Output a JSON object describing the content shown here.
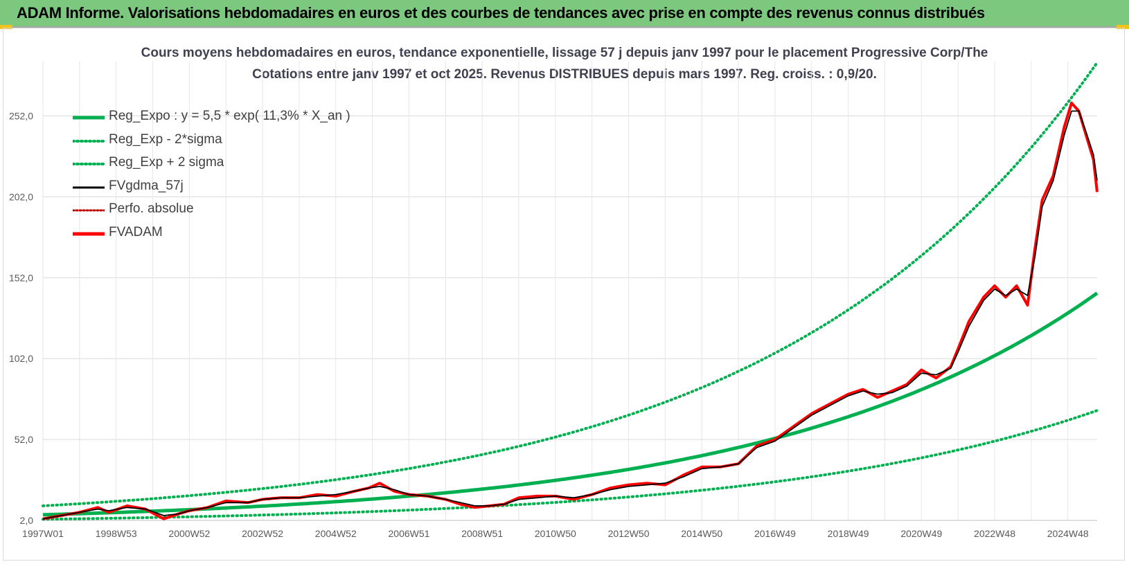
{
  "header": {
    "title": "ADAM Informe. Valorisations hebdomadaires en euros et des courbes de tendances avec prise en compte des revenus connus distribués"
  },
  "chart_data": {
    "type": "line",
    "title_line1": "Cours moyens hebdomadaires en euros, tendance exponentielle, lissage 57 j depuis janv 1997 pour le placement Progressive Corp/The",
    "title_line2": "Cotations entre janv 1997 et oct 2025. Revenus DISTRIBUES depuis mars 1997. Reg. croiss. : 0,9/20.",
    "x_ticks": [
      "1997W01",
      "1998W53",
      "2000W52",
      "2002W52",
      "2004W52",
      "2006W51",
      "2008W51",
      "2010W50",
      "2012W50",
      "2014W50",
      "2016W49",
      "2018W49",
      "2020W49",
      "2022W48",
      "2024W48"
    ],
    "x_range_years": [
      1997.0,
      2025.8
    ],
    "ylim": [
      2.0,
      286.0
    ],
    "y_ticks": [
      "2,0",
      "52,0",
      "102,0",
      "152,0",
      "202,0",
      "252,0"
    ],
    "y_tick_values": [
      2,
      52,
      102,
      152,
      202,
      252
    ],
    "legend": [
      {
        "label": "Reg_Expo : y = 5,5 * exp( 11,3% *  X_an )",
        "color": "#00b050",
        "style": "solid-thick"
      },
      {
        "label": "Reg_Exp - 2*sigma",
        "color": "#00b050",
        "style": "dotted"
      },
      {
        "label": "Reg_Exp + 2 sigma",
        "color": "#00b050",
        "style": "dotted"
      },
      {
        "label": "FVgdma_57j",
        "color": "#000000",
        "style": "solid"
      },
      {
        "label": "Perfo. absolue",
        "color": "#c00000",
        "style": "dotted"
      },
      {
        "label": "FVADAM",
        "color": "#ff0000",
        "style": "solid-thick"
      }
    ],
    "series": [
      {
        "name": "Reg_Expo",
        "color": "#00b050",
        "a": 5.5,
        "b": 0.113
      },
      {
        "name": "Reg_Exp - 2*sigma",
        "color": "#00b050",
        "a": 2.7,
        "b": 0.113
      },
      {
        "name": "Reg_Exp + 2 sigma",
        "color": "#00b050",
        "a": 11.0,
        "b": 0.113
      },
      {
        "name": "FVADAM",
        "color": "#ff0000",
        "x": [
          1997.0,
          1997.5,
          1998.0,
          1998.5,
          1998.8,
          1999.3,
          1999.8,
          2000.3,
          2000.7,
          2001.0,
          2001.5,
          2002.0,
          2002.6,
          2003.0,
          2003.5,
          2004.0,
          2004.5,
          2005.0,
          2005.5,
          2005.9,
          2006.2,
          2006.6,
          2007.0,
          2007.5,
          2008.0,
          2008.4,
          2008.8,
          2009.2,
          2009.6,
          2010.0,
          2010.5,
          2011.0,
          2011.5,
          2012.0,
          2012.5,
          2013.0,
          2013.5,
          2014.0,
          2014.5,
          2015.0,
          2015.5,
          2016.0,
          2016.5,
          2017.0,
          2017.5,
          2018.0,
          2018.5,
          2019.0,
          2019.4,
          2019.8,
          2020.2,
          2020.6,
          2021.0,
          2021.4,
          2021.8,
          2022.0,
          2022.3,
          2022.7,
          2023.0,
          2023.3,
          2023.6,
          2023.9,
          2024.1,
          2024.3,
          2024.6,
          2024.9,
          2025.1,
          2025.3,
          2025.5,
          2025.7,
          2025.8
        ],
        "values": [
          3,
          5,
          7,
          10,
          7,
          11,
          9,
          3,
          6,
          8,
          10,
          14,
          13,
          15,
          16,
          16,
          18,
          17,
          20,
          22,
          25,
          20,
          18,
          17,
          15,
          12,
          10,
          11,
          12,
          16,
          17,
          17,
          15,
          18,
          22,
          24,
          25,
          24,
          30,
          35,
          35,
          37,
          48,
          52,
          60,
          68,
          74,
          80,
          83,
          78,
          82,
          86,
          95,
          90,
          97,
          108,
          125,
          140,
          147,
          140,
          147,
          135,
          170,
          200,
          215,
          245,
          260,
          255,
          240,
          225,
          205
        ]
      },
      {
        "name": "FVgdma_57j",
        "color": "#000000",
        "x": [
          1997.0,
          1997.5,
          1998.0,
          1998.5,
          1998.8,
          1999.3,
          1999.8,
          2000.3,
          2000.7,
          2001.0,
          2001.5,
          2002.0,
          2002.6,
          2003.0,
          2003.5,
          2004.0,
          2004.5,
          2005.0,
          2005.5,
          2005.9,
          2006.2,
          2006.6,
          2007.0,
          2007.5,
          2008.0,
          2008.4,
          2008.8,
          2009.2,
          2009.6,
          2010.0,
          2010.5,
          2011.0,
          2011.5,
          2012.0,
          2012.5,
          2013.0,
          2013.5,
          2014.0,
          2014.5,
          2015.0,
          2015.5,
          2016.0,
          2016.5,
          2017.0,
          2017.5,
          2018.0,
          2018.5,
          2019.0,
          2019.4,
          2019.8,
          2020.2,
          2020.6,
          2021.0,
          2021.4,
          2021.8,
          2022.0,
          2022.3,
          2022.7,
          2023.0,
          2023.3,
          2023.6,
          2023.9,
          2024.1,
          2024.3,
          2024.6,
          2024.9,
          2025.1,
          2025.3,
          2025.5,
          2025.7,
          2025.8
        ],
        "values": [
          3,
          5,
          7,
          9,
          8,
          10,
          9,
          5,
          6,
          8,
          10,
          13,
          13,
          15,
          16,
          16,
          17,
          18,
          20,
          22,
          23,
          21,
          18,
          17,
          15,
          13,
          11,
          11,
          12,
          15,
          16,
          17,
          16,
          18,
          21,
          23,
          24,
          25,
          29,
          34,
          35,
          37,
          47,
          51,
          59,
          67,
          73,
          79,
          82,
          80,
          81,
          85,
          93,
          92,
          96,
          106,
          122,
          138,
          145,
          141,
          145,
          141,
          165,
          196,
          212,
          240,
          255,
          255,
          242,
          228,
          212
        ]
      }
    ]
  }
}
